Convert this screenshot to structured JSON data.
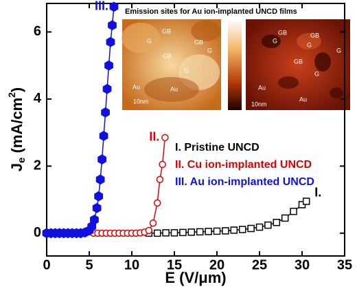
{
  "chart_data": {
    "type": "line",
    "xlabel": "E (V/μm)",
    "ylabel_parts": [
      "J",
      "e",
      " (mA/cm",
      "2",
      ")"
    ],
    "xlim": [
      0,
      35
    ],
    "xticks": [
      0,
      5,
      10,
      15,
      20,
      25,
      30,
      35
    ],
    "ylim": [
      -0.68,
      6.85
    ],
    "yticks": [
      0,
      2,
      4,
      6
    ],
    "series": [
      {
        "name": "I. Pristine UNCD",
        "label": "I.",
        "color": "#000000",
        "marker": "square",
        "filled": false,
        "x": [
          12,
          13,
          14,
          15,
          16,
          17,
          18,
          19,
          20,
          21,
          22,
          23,
          24,
          25,
          26,
          27,
          28,
          29,
          30,
          30.5
        ],
        "values": [
          0,
          0,
          0.01,
          0.01,
          0.02,
          0.03,
          0.04,
          0.05,
          0.06,
          0.07,
          0.09,
          0.11,
          0.14,
          0.18,
          0.24,
          0.32,
          0.45,
          0.65,
          0.85,
          0.95
        ]
      },
      {
        "name": "II. Cu ion-implanted UNCD",
        "label": "II.",
        "color": "#e00000",
        "marker": "circle",
        "filled": false,
        "x": [
          5.5,
          6,
          6.5,
          7,
          7.5,
          8,
          8.5,
          9,
          9.5,
          10,
          10.5,
          11,
          11.5,
          12,
          12.5,
          13,
          13.3,
          13.6,
          13.9
        ],
        "values": [
          0,
          0,
          0,
          0,
          0,
          0,
          0,
          0,
          0,
          0,
          0,
          0.01,
          0.03,
          0.08,
          0.3,
          0.9,
          1.6,
          2.05,
          2.85
        ]
      },
      {
        "name": "III. Au ion-implanted UNCD",
        "label": "III.",
        "color": "#1010e0",
        "marker": "hexagon",
        "filled": true,
        "x": [
          0,
          0.5,
          1,
          1.5,
          2,
          2.5,
          3,
          3.5,
          4,
          4.5,
          5,
          5.3,
          5.6,
          5.9,
          6.1,
          6.3,
          6.5,
          6.7,
          6.9,
          7.1,
          7.3,
          7.5,
          7.7,
          7.9
        ],
        "values": [
          0,
          0,
          0,
          0,
          0,
          0,
          0,
          0,
          0,
          0.02,
          0.08,
          0.2,
          0.4,
          0.75,
          1.1,
          1.6,
          2.2,
          2.9,
          3.6,
          4.3,
          5.0,
          5.7,
          6.2,
          6.75
        ]
      }
    ],
    "inset": {
      "title": "Emission sites for Au ion-implanted UNCD films",
      "left_labels": [
        "GB",
        "G",
        "GB",
        "G",
        "GB",
        "G",
        "Au",
        "Au",
        "10nm"
      ],
      "right_labels": [
        "GB",
        "G",
        "GB",
        "G",
        "G",
        "GB",
        "G",
        "Au",
        "Au",
        "10nm"
      ]
    }
  }
}
